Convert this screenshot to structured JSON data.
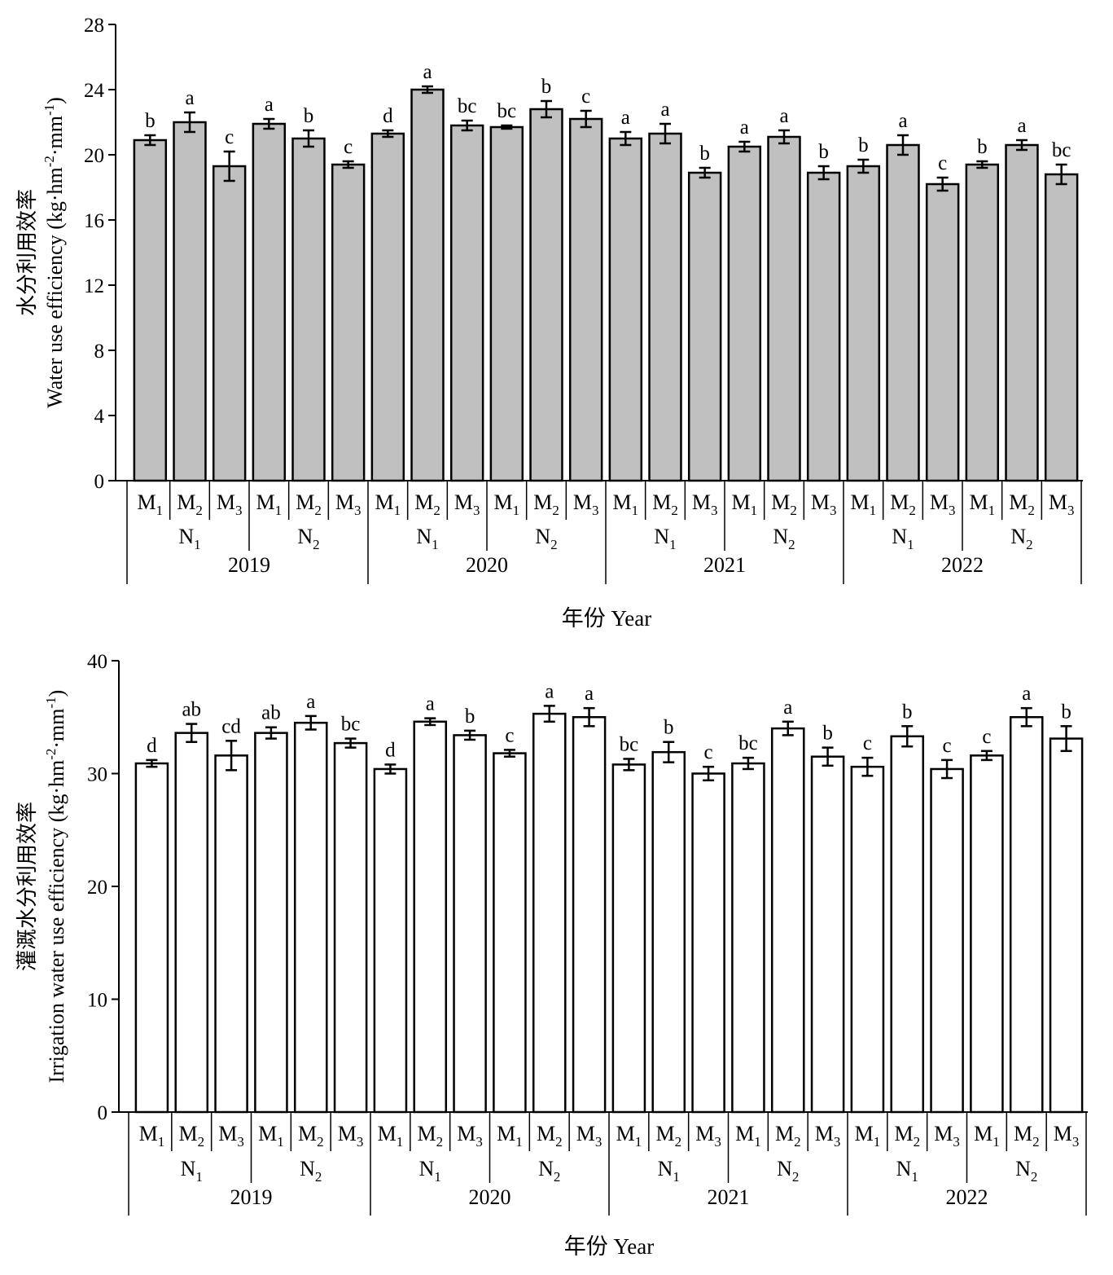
{
  "chart_data": [
    {
      "type": "bar",
      "ylabel_cn": "水分利用效率",
      "ylabel_en": "Water use efficiency (kg·hm",
      "ylabel_unit_sup1": "-2",
      "ylabel_unit_mid": "·mm",
      "ylabel_unit_sup2": "-1",
      "ylabel_close": ")",
      "xlabel": "年份 Year",
      "ylim": [
        0,
        28
      ],
      "yticks": [
        0,
        4,
        8,
        12,
        16,
        20,
        24,
        28
      ],
      "bar_color": "#c0c0c0",
      "categories": [
        "M1",
        "M2",
        "M3",
        "M1",
        "M2",
        "M3",
        "M1",
        "M2",
        "M3",
        "M1",
        "M2",
        "M3",
        "M1",
        "M2",
        "M3",
        "M1",
        "M2",
        "M3",
        "M1",
        "M2",
        "M3",
        "M1",
        "M2",
        "M3"
      ],
      "values": [
        20.9,
        22.0,
        19.3,
        21.9,
        21.0,
        19.4,
        21.3,
        24.0,
        21.8,
        21.7,
        22.8,
        22.2,
        21.0,
        21.3,
        18.9,
        20.5,
        21.1,
        18.9,
        19.3,
        20.6,
        18.2,
        19.4,
        20.6,
        18.8
      ],
      "errors": [
        0.3,
        0.6,
        0.9,
        0.3,
        0.5,
        0.2,
        0.2,
        0.2,
        0.3,
        0.1,
        0.5,
        0.5,
        0.4,
        0.6,
        0.3,
        0.3,
        0.4,
        0.4,
        0.4,
        0.6,
        0.4,
        0.2,
        0.3,
        0.6
      ],
      "letters": [
        "b",
        "a",
        "c",
        "a",
        "b",
        "c",
        "d",
        "a",
        "bc",
        "bc",
        "b",
        "c",
        "a",
        "a",
        "b",
        "a",
        "a",
        "b",
        "b",
        "a",
        "c",
        "b",
        "a",
        "bc"
      ],
      "n_labels": [
        "N1",
        "N2",
        "N1",
        "N2",
        "N1",
        "N2",
        "N1",
        "N2"
      ],
      "years": [
        "2019",
        "2020",
        "2021",
        "2022"
      ]
    },
    {
      "type": "bar",
      "ylabel_cn": "灌溉水分利用效率",
      "ylabel_en": "Irrigation water use efficiency (kg·hm",
      "ylabel_unit_sup1": "-2",
      "ylabel_unit_mid": "·mm",
      "ylabel_unit_sup2": "-1",
      "ylabel_close": ")",
      "xlabel": "年份 Year",
      "ylim": [
        0,
        40
      ],
      "yticks": [
        0,
        10,
        20,
        30,
        40
      ],
      "bar_color": "#ffffff",
      "categories": [
        "M1",
        "M2",
        "M3",
        "M1",
        "M2",
        "M3",
        "M1",
        "M2",
        "M3",
        "M1",
        "M2",
        "M3",
        "M1",
        "M2",
        "M3",
        "M1",
        "M2",
        "M3",
        "M1",
        "M2",
        "M3",
        "M1",
        "M2",
        "M3"
      ],
      "values": [
        30.9,
        33.6,
        31.6,
        33.6,
        34.5,
        32.7,
        30.4,
        34.6,
        33.4,
        31.8,
        35.3,
        35.0,
        30.8,
        31.9,
        30.0,
        30.9,
        34.0,
        31.5,
        30.6,
        33.3,
        30.4,
        31.6,
        35.0,
        33.1
      ],
      "errors": [
        0.3,
        0.8,
        1.3,
        0.5,
        0.6,
        0.4,
        0.4,
        0.3,
        0.4,
        0.3,
        0.7,
        0.8,
        0.5,
        0.9,
        0.6,
        0.5,
        0.6,
        0.8,
        0.8,
        0.9,
        0.8,
        0.4,
        0.8,
        1.1
      ],
      "letters": [
        "d",
        "ab",
        "cd",
        "ab",
        "a",
        "bc",
        "d",
        "a",
        "b",
        "c",
        "a",
        "a",
        "bc",
        "b",
        "c",
        "bc",
        "a",
        "b",
        "c",
        "b",
        "c",
        "c",
        "a",
        "b"
      ],
      "n_labels": [
        "N1",
        "N2",
        "N1",
        "N2",
        "N1",
        "N2",
        "N1",
        "N2"
      ],
      "years": [
        "2019",
        "2020",
        "2021",
        "2022"
      ]
    }
  ]
}
